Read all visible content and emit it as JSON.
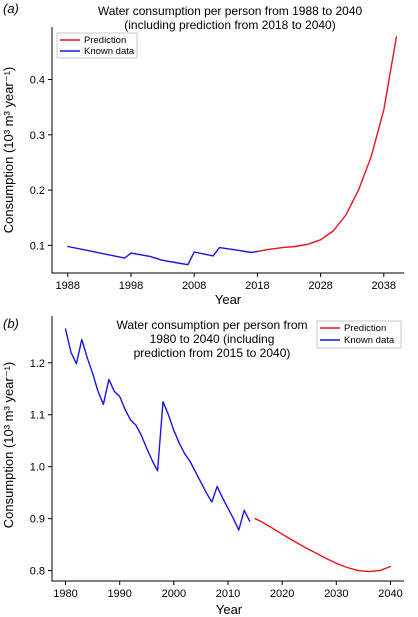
{
  "chart_data": [
    {
      "panel_label": "(a)",
      "type": "line",
      "title_lines": [
        "Water consumption per person from 1988 to 2040",
        "(including prediction from 2018 to 2040)"
      ],
      "xlabel": "Year",
      "ylabel": "Consumption (10³ m³ year⁻¹)",
      "xlim": [
        1985.5,
        2041.2
      ],
      "ylim": [
        0.05,
        0.495
      ],
      "xticks": [
        1988,
        1998,
        2008,
        2018,
        2028,
        2038
      ],
      "yticks": [
        0.1,
        0.2,
        0.3,
        0.4
      ],
      "ytick_labels": [
        "0.1",
        "0.2",
        "0.3",
        "0.4"
      ],
      "legend_position": "top-left",
      "series": [
        {
          "name": "Prediction",
          "color": "#e8141b",
          "x": [
            2018,
            2020,
            2022,
            2024,
            2026,
            2028,
            2030,
            2032,
            2034,
            2036,
            2038,
            2040
          ],
          "y": [
            0.089,
            0.093,
            0.096,
            0.098,
            0.102,
            0.11,
            0.126,
            0.155,
            0.2,
            0.26,
            0.345,
            0.477
          ]
        },
        {
          "name": "Known data",
          "color": "#1a14e6",
          "x": [
            1988,
            1991,
            1994,
            1997,
            1998,
            2001,
            2003,
            2005,
            2007,
            2008,
            2011,
            2012,
            2015,
            2017,
            2018
          ],
          "y": [
            0.098,
            0.091,
            0.084,
            0.077,
            0.086,
            0.08,
            0.073,
            0.069,
            0.065,
            0.088,
            0.081,
            0.096,
            0.091,
            0.087,
            0.089
          ]
        }
      ]
    },
    {
      "panel_label": "(b)",
      "type": "line",
      "title_lines": [
        "Water consumption per person from",
        "1980 to 2040 (including",
        "prediction from 2015 to 2040)"
      ],
      "xlabel": "Year",
      "ylabel": "Consumption (10³ m³ year⁻¹)",
      "xlim": [
        1977.5,
        2042.5
      ],
      "ylim": [
        0.78,
        1.29
      ],
      "xticks": [
        1980,
        1990,
        2000,
        2010,
        2020,
        2030,
        2040
      ],
      "yticks": [
        0.8,
        0.9,
        1.0,
        1.1,
        1.2
      ],
      "ytick_labels": [
        "0.8",
        "0.9",
        "1.0",
        "1.1",
        "1.2"
      ],
      "legend_position": "top-right",
      "series": [
        {
          "name": "Prediction",
          "color": "#e8141b",
          "x": [
            2015,
            2016,
            2018,
            2020,
            2022,
            2024,
            2026,
            2028,
            2030,
            2032,
            2034,
            2036,
            2038,
            2040
          ],
          "y": [
            0.9,
            0.895,
            0.883,
            0.87,
            0.858,
            0.846,
            0.835,
            0.824,
            0.814,
            0.806,
            0.8,
            0.798,
            0.8,
            0.808
          ]
        },
        {
          "name": "Known data",
          "color": "#1a14e6",
          "x": [
            1980,
            1981,
            1982,
            1983,
            1984,
            1985,
            1986,
            1987,
            1988,
            1989,
            1990,
            1991,
            1992,
            1993,
            1994,
            1995,
            1996,
            1997,
            1998,
            1999,
            2000,
            2001,
            2002,
            2003,
            2004,
            2005,
            2006,
            2007,
            2008,
            2009,
            2010,
            2011,
            2012,
            2013,
            2014
          ],
          "y": [
            1.265,
            1.22,
            1.198,
            1.245,
            1.21,
            1.18,
            1.145,
            1.12,
            1.168,
            1.145,
            1.135,
            1.11,
            1.09,
            1.08,
            1.06,
            1.035,
            1.012,
            0.992,
            1.125,
            1.1,
            1.07,
            1.045,
            1.025,
            1.01,
            0.99,
            0.97,
            0.95,
            0.932,
            0.962,
            0.94,
            0.92,
            0.9,
            0.878,
            0.916,
            0.895
          ]
        }
      ]
    }
  ]
}
